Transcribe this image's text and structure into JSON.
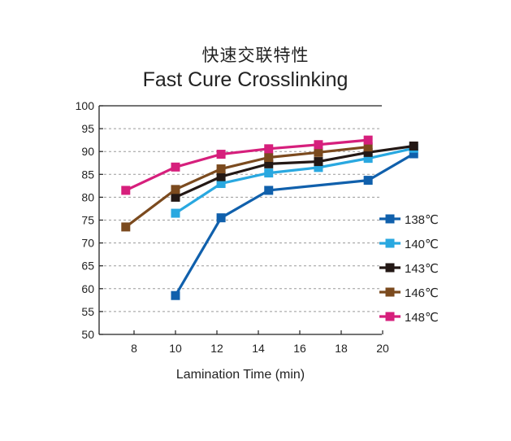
{
  "chart_data": {
    "type": "line",
    "title": "快速交联特性",
    "subtitle": "Fast Cure Crosslinking",
    "xlabel": "Lamination Time (min)",
    "ylabel": "",
    "xlim": [
      6,
      21.5
    ],
    "ylim": [
      50,
      100
    ],
    "x_ticks": [
      8,
      10,
      12,
      14,
      16,
      18,
      20
    ],
    "y_ticks": [
      50,
      55,
      60,
      65,
      70,
      75,
      80,
      85,
      90,
      95,
      100
    ],
    "grid": "horizontal-dashed",
    "legend_position": "right",
    "series": [
      {
        "name": "138℃",
        "color": "#1060ac",
        "x": [
          10,
          12.2,
          14.5,
          19.3,
          21.5
        ],
        "values": [
          58.5,
          75.5,
          81.5,
          83.7,
          89.5
        ]
      },
      {
        "name": "140℃",
        "color": "#29a8e0",
        "x": [
          10,
          12.2,
          14.5,
          16.9,
          19.3,
          21.5
        ],
        "values": [
          76.5,
          83,
          85.3,
          86.5,
          88.5,
          90.7
        ]
      },
      {
        "name": "143℃",
        "color": "#231815",
        "x": [
          10,
          12.2,
          14.5,
          16.9,
          19.3,
          21.5
        ],
        "values": [
          80,
          84.5,
          87.3,
          87.8,
          89.8,
          91.2
        ]
      },
      {
        "name": "146℃",
        "color": "#7b4a1e",
        "x": [
          7.6,
          10,
          12.2,
          14.5,
          16.9,
          19.3
        ],
        "values": [
          73.5,
          81.7,
          86.2,
          88.7,
          89.8,
          91
        ]
      },
      {
        "name": "148℃",
        "color": "#d61f7c",
        "x": [
          7.6,
          10,
          12.2,
          14.5,
          16.9,
          19.3
        ],
        "values": [
          81.5,
          86.6,
          89.4,
          90.6,
          91.5,
          92.5
        ]
      }
    ]
  }
}
